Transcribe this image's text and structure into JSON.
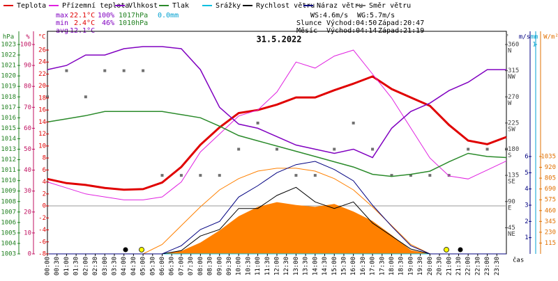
{
  "chart_data": {
    "type": "line",
    "title": "31.5.2022",
    "x_label": "čas",
    "x": [
      0,
      1,
      2,
      3,
      4,
      5,
      6,
      7,
      8,
      9,
      10,
      11,
      12,
      13,
      14,
      15,
      16,
      17,
      18,
      19,
      20,
      21,
      22,
      23,
      24
    ],
    "xlim": [
      0,
      24
    ],
    "xticks": [
      {
        "value": 0,
        "label": "00:00"
      },
      {
        "value": 0.5,
        "label": "00:30"
      },
      {
        "value": 1,
        "label": "01:00"
      },
      {
        "value": 1.5,
        "label": "01:30"
      },
      {
        "value": 2,
        "label": "02:00"
      },
      {
        "value": 2.5,
        "label": "02:30"
      },
      {
        "value": 3,
        "label": "03:00"
      },
      {
        "value": 3.5,
        "label": "03:30"
      },
      {
        "value": 4,
        "label": "04:00"
      },
      {
        "value": 4.5,
        "label": "04:30"
      },
      {
        "value": 5,
        "label": "05:00"
      },
      {
        "value": 5.5,
        "label": "05:30"
      },
      {
        "value": 6,
        "label": "06:00"
      },
      {
        "value": 6.5,
        "label": "06:30"
      },
      {
        "value": 7,
        "label": "07:00"
      },
      {
        "value": 7.5,
        "label": "07:30"
      },
      {
        "value": 8,
        "label": "08:00"
      },
      {
        "value": 8.5,
        "label": "08:30"
      },
      {
        "value": 9,
        "label": "09:00"
      },
      {
        "value": 9.5,
        "label": "09:30"
      },
      {
        "value": 10,
        "label": "10:00"
      },
      {
        "value": 10.5,
        "label": "10:30"
      },
      {
        "value": 11,
        "label": "11:00"
      },
      {
        "value": 11.5,
        "label": "11:30"
      },
      {
        "value": 12,
        "label": "12:00"
      },
      {
        "value": 12.5,
        "label": "12:30"
      },
      {
        "value": 13,
        "label": "13:00"
      },
      {
        "value": 13.5,
        "label": "13:30"
      },
      {
        "value": 14,
        "label": "14:00"
      },
      {
        "value": 14.5,
        "label": "14:30"
      },
      {
        "value": 15,
        "label": "15:00"
      },
      {
        "value": 15.5,
        "label": "15:30"
      },
      {
        "value": 16,
        "label": "16:00"
      },
      {
        "value": 16.5,
        "label": "16:30"
      },
      {
        "value": 17,
        "label": "17:00"
      },
      {
        "value": 17.5,
        "label": "17:30"
      },
      {
        "value": 18,
        "label": "18:00"
      },
      {
        "value": 18.5,
        "label": "18:30"
      },
      {
        "value": 19,
        "label": "19:00"
      },
      {
        "value": 19.5,
        "label": "19:30"
      },
      {
        "value": 20,
        "label": "20:00"
      },
      {
        "value": 20.5,
        "label": "20:30"
      },
      {
        "value": 21,
        "label": "21:00"
      },
      {
        "value": 21.5,
        "label": "21:30"
      },
      {
        "value": 22,
        "label": "22:00"
      },
      {
        "value": 22.5,
        "label": "22:30"
      },
      {
        "value": 23,
        "label": "23:00"
      },
      {
        "value": 23.5,
        "label": "23:30"
      }
    ],
    "axes": {
      "pressure": {
        "label": "hPa",
        "color": "#208020",
        "lim": [
          1003,
          1023
        ],
        "ticks": [
          1003,
          1004,
          1005,
          1006,
          1007,
          1008,
          1009,
          1010,
          1011,
          1012,
          1013,
          1014,
          1015,
          1016,
          1017,
          1018,
          1019,
          1020,
          1021,
          1022,
          1023
        ]
      },
      "humidity": {
        "label": "%",
        "color": "#c01060",
        "lim": [
          0,
          100
        ],
        "ticks": [
          0,
          10,
          20,
          30,
          40,
          50,
          60,
          70,
          80,
          90,
          100
        ]
      },
      "temperature": {
        "label": "°C",
        "color": "#e00000",
        "lim": [
          -8,
          26
        ],
        "ticks": [
          -8,
          -6,
          -4,
          -2,
          0,
          2,
          4,
          6,
          8,
          10,
          12,
          14,
          16,
          18,
          20,
          22,
          24,
          26
        ]
      },
      "direction": {
        "label": "°",
        "color": "#404040",
        "lim": [
          0,
          360
        ],
        "ticks": [
          45,
          90,
          135,
          180,
          225,
          270,
          315,
          360
        ],
        "tick_names": [
          "NE",
          "E",
          "SE",
          "S",
          "SW",
          "W",
          "NW",
          "N"
        ]
      },
      "wind": {
        "label": "m/s",
        "color": "#000080",
        "lim": [
          0,
          6
        ],
        "ticks": [
          1,
          2,
          3,
          4,
          5,
          6
        ]
      },
      "rain": {
        "label": "mm",
        "color": "#00a0d0",
        "lim": [
          0,
          1
        ],
        "ticks": [
          1
        ]
      },
      "solar": {
        "label": "W/m²",
        "color": "#e07000",
        "lim": [
          0,
          1035
        ],
        "ticks": [
          115,
          230,
          345,
          460,
          575,
          690,
          805,
          920,
          1035
        ]
      }
    },
    "zero_line": 0,
    "series": [
      {
        "name": "Teplota",
        "color": "#e00000",
        "axis": "temperature",
        "kind": "line",
        "values": [
          4.5,
          3.8,
          3.5,
          3.0,
          2.7,
          2.8,
          3.9,
          6.5,
          10.2,
          13.1,
          15.5,
          16.0,
          16.9,
          18.1,
          18.1,
          19.3,
          20.4,
          21.6,
          19.5,
          18.1,
          16.7,
          13.5,
          10.9,
          10.3,
          11.5
        ]
      },
      {
        "name": "Přízemní teplota",
        "color": "#e020e0",
        "axis": "temperature",
        "kind": "line",
        "values": [
          4,
          3,
          2,
          1.5,
          1,
          1,
          1.5,
          4,
          9,
          12,
          15,
          16,
          19,
          24,
          23,
          25,
          26,
          22,
          18,
          13,
          8,
          5,
          4.5,
          6,
          7.5
        ]
      },
      {
        "name": "Vlhkost",
        "color": "#8000c0",
        "axis": "humidity",
        "kind": "line",
        "values": [
          88,
          90,
          95,
          95,
          98,
          99,
          99,
          98,
          88,
          70,
          62,
          60,
          56,
          52,
          50,
          48,
          50,
          46,
          60,
          68,
          72,
          78,
          82,
          88,
          88
        ]
      },
      {
        "name": "Tlak",
        "color": "#2a8a2a",
        "axis": "pressure",
        "kind": "line",
        "values": [
          1015.6,
          1015.9,
          1016.2,
          1016.6,
          1016.6,
          1016.6,
          1016.6,
          1016.3,
          1016,
          1015.2,
          1014.3,
          1013.8,
          1013.3,
          1012.8,
          1012.3,
          1011.8,
          1011.3,
          1010.6,
          1010.4,
          1010.6,
          1010.9,
          1011.8,
          1012.6,
          1012.3,
          1012.2
        ]
      },
      {
        "name": "Srážky",
        "color": "#00c0e0",
        "axis": "rain",
        "kind": "line",
        "values": [
          0,
          0,
          0,
          0,
          0,
          0,
          0,
          0,
          0,
          0,
          0,
          0,
          0,
          0,
          0,
          0,
          0,
          0,
          0,
          0,
          0,
          0,
          0,
          0,
          0
        ]
      },
      {
        "color": "#ff8000",
        "axis": "solar",
        "kind": "area",
        "values": [
          0,
          0,
          0,
          0,
          0,
          0,
          0,
          30,
          120,
          250,
          400,
          500,
          550,
          520,
          500,
          530,
          450,
          350,
          200,
          40,
          0,
          0,
          0,
          0,
          0
        ]
      },
      {
        "color": "#ff8000",
        "axis": "solar",
        "kind": "line",
        "values": [
          null,
          null,
          null,
          null,
          null,
          0,
          100,
          300,
          500,
          680,
          800,
          880,
          910,
          910,
          880,
          800,
          680,
          500,
          300,
          100,
          0,
          null,
          null,
          null,
          null
        ]
      },
      {
        "name": "Rychlost větru",
        "color": "#000000",
        "axis": "wind",
        "kind": "line",
        "values": [
          0,
          0,
          0,
          0,
          0,
          0,
          0,
          0.2,
          1.1,
          1.5,
          2.8,
          2.8,
          3.6,
          4.1,
          3.2,
          2.8,
          3.2,
          1.9,
          1.1,
          0.3,
          0,
          0,
          0,
          0,
          0
        ]
      },
      {
        "name": "Náraz větru",
        "color": "#000080",
        "axis": "wind",
        "kind": "line",
        "values": [
          0,
          0,
          0,
          0,
          0,
          0,
          0,
          0.5,
          1.5,
          2,
          3.5,
          4.2,
          5,
          5.5,
          5.7,
          5.2,
          4.5,
          3,
          1.7,
          0.5,
          0,
          0,
          0,
          0,
          0
        ]
      },
      {
        "name": "Směr větru",
        "color": "#707070",
        "axis": "direction",
        "kind": "points",
        "values": [
          270,
          315,
          270,
          315,
          315,
          315,
          135,
          135,
          135,
          135,
          180,
          225,
          180,
          135,
          135,
          180,
          225,
          180,
          135,
          135,
          135,
          135,
          180,
          180,
          180
        ]
      }
    ],
    "stats": {
      "max": {
        "label": "max",
        "temperature": "22.1°C",
        "humidity": "100%",
        "pressure": "1017hPa",
        "rain": "0.0mm"
      },
      "min": {
        "label": "min",
        "temperature": "2.4°C",
        "humidity": "46%",
        "pressure": "1010hPa"
      },
      "avg": {
        "label": "avg",
        "temperature": "12.1°C"
      },
      "ws": "WS:4.6m/s",
      "wg": "WG:5.7m/s",
      "sun": {
        "label": "Slunce",
        "rise": "Východ:04:50",
        "set": "Západ:20:47"
      },
      "moon": {
        "label": "Měsíc",
        "rise": "Východ:04:14",
        "set": "Západ:21:19"
      }
    }
  }
}
